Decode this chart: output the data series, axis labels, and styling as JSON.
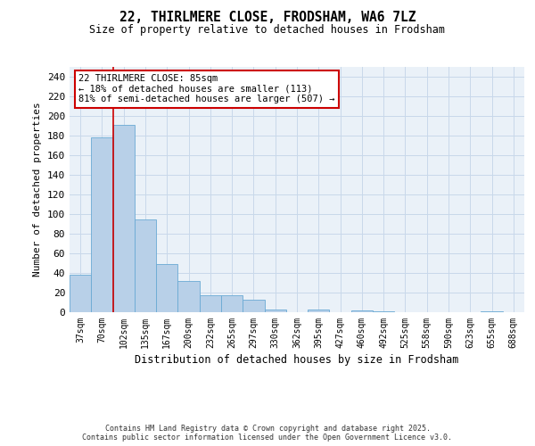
{
  "title": "22, THIRLMERE CLOSE, FRODSHAM, WA6 7LZ",
  "subtitle": "Size of property relative to detached houses in Frodsham",
  "xlabel": "Distribution of detached houses by size in Frodsham",
  "ylabel": "Number of detached properties",
  "categories": [
    "37sqm",
    "70sqm",
    "102sqm",
    "135sqm",
    "167sqm",
    "200sqm",
    "232sqm",
    "265sqm",
    "297sqm",
    "330sqm",
    "362sqm",
    "395sqm",
    "427sqm",
    "460sqm",
    "492sqm",
    "525sqm",
    "558sqm",
    "590sqm",
    "623sqm",
    "655sqm",
    "688sqm"
  ],
  "values": [
    38,
    178,
    191,
    95,
    49,
    32,
    17,
    17,
    13,
    3,
    0,
    3,
    0,
    2,
    1,
    0,
    0,
    0,
    0,
    1,
    0
  ],
  "bar_color": "#b8d0e8",
  "bar_edge_color": "#6aaad4",
  "grid_color": "#c8d8ea",
  "bg_color": "#eaf1f8",
  "red_line_x": 1.5,
  "annotation_text": "22 THIRLMERE CLOSE: 85sqm\n← 18% of detached houses are smaller (113)\n81% of semi-detached houses are larger (507) →",
  "annotation_box_color": "#ffffff",
  "annotation_border_color": "#cc0000",
  "footer_line1": "Contains HM Land Registry data © Crown copyright and database right 2025.",
  "footer_line2": "Contains public sector information licensed under the Open Government Licence v3.0.",
  "ylim": [
    0,
    250
  ],
  "yticks": [
    0,
    20,
    40,
    60,
    80,
    100,
    120,
    140,
    160,
    180,
    200,
    220,
    240
  ]
}
